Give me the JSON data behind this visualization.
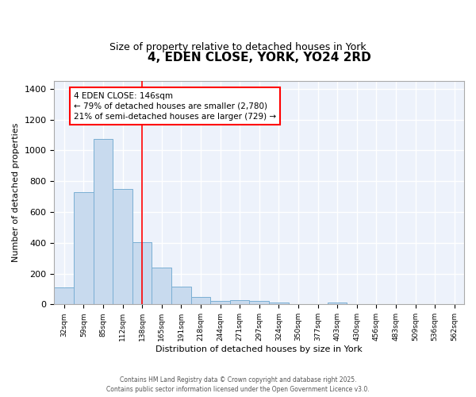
{
  "title": "4, EDEN CLOSE, YORK, YO24 2RD",
  "subtitle": "Size of property relative to detached houses in York",
  "xlabel": "Distribution of detached houses by size in York",
  "ylabel": "Number of detached properties",
  "categories": [
    "32sqm",
    "59sqm",
    "85sqm",
    "112sqm",
    "138sqm",
    "165sqm",
    "191sqm",
    "218sqm",
    "244sqm",
    "271sqm",
    "297sqm",
    "324sqm",
    "350sqm",
    "377sqm",
    "403sqm",
    "430sqm",
    "456sqm",
    "483sqm",
    "509sqm",
    "536sqm",
    "562sqm"
  ],
  "values": [
    110,
    730,
    1075,
    750,
    405,
    240,
    115,
    50,
    20,
    27,
    20,
    10,
    0,
    0,
    10,
    0,
    0,
    0,
    0,
    0,
    0
  ],
  "bar_color": "#c8daee",
  "bar_edge_color": "#7aafd4",
  "annotation_line1": "4 EDEN CLOSE: 146sqm",
  "annotation_line2": "← 79% of detached houses are smaller (2,780)",
  "annotation_line3": "21% of semi-detached houses are larger (729) →",
  "red_line_index": 4,
  "ylim": [
    0,
    1450
  ],
  "yticks": [
    0,
    200,
    400,
    600,
    800,
    1000,
    1200,
    1400
  ],
  "background_color": "#edf2fb",
  "grid_color": "#ffffff",
  "footer_line1": "Contains HM Land Registry data © Crown copyright and database right 2025.",
  "footer_line2": "Contains public sector information licensed under the Open Government Licence v3.0."
}
